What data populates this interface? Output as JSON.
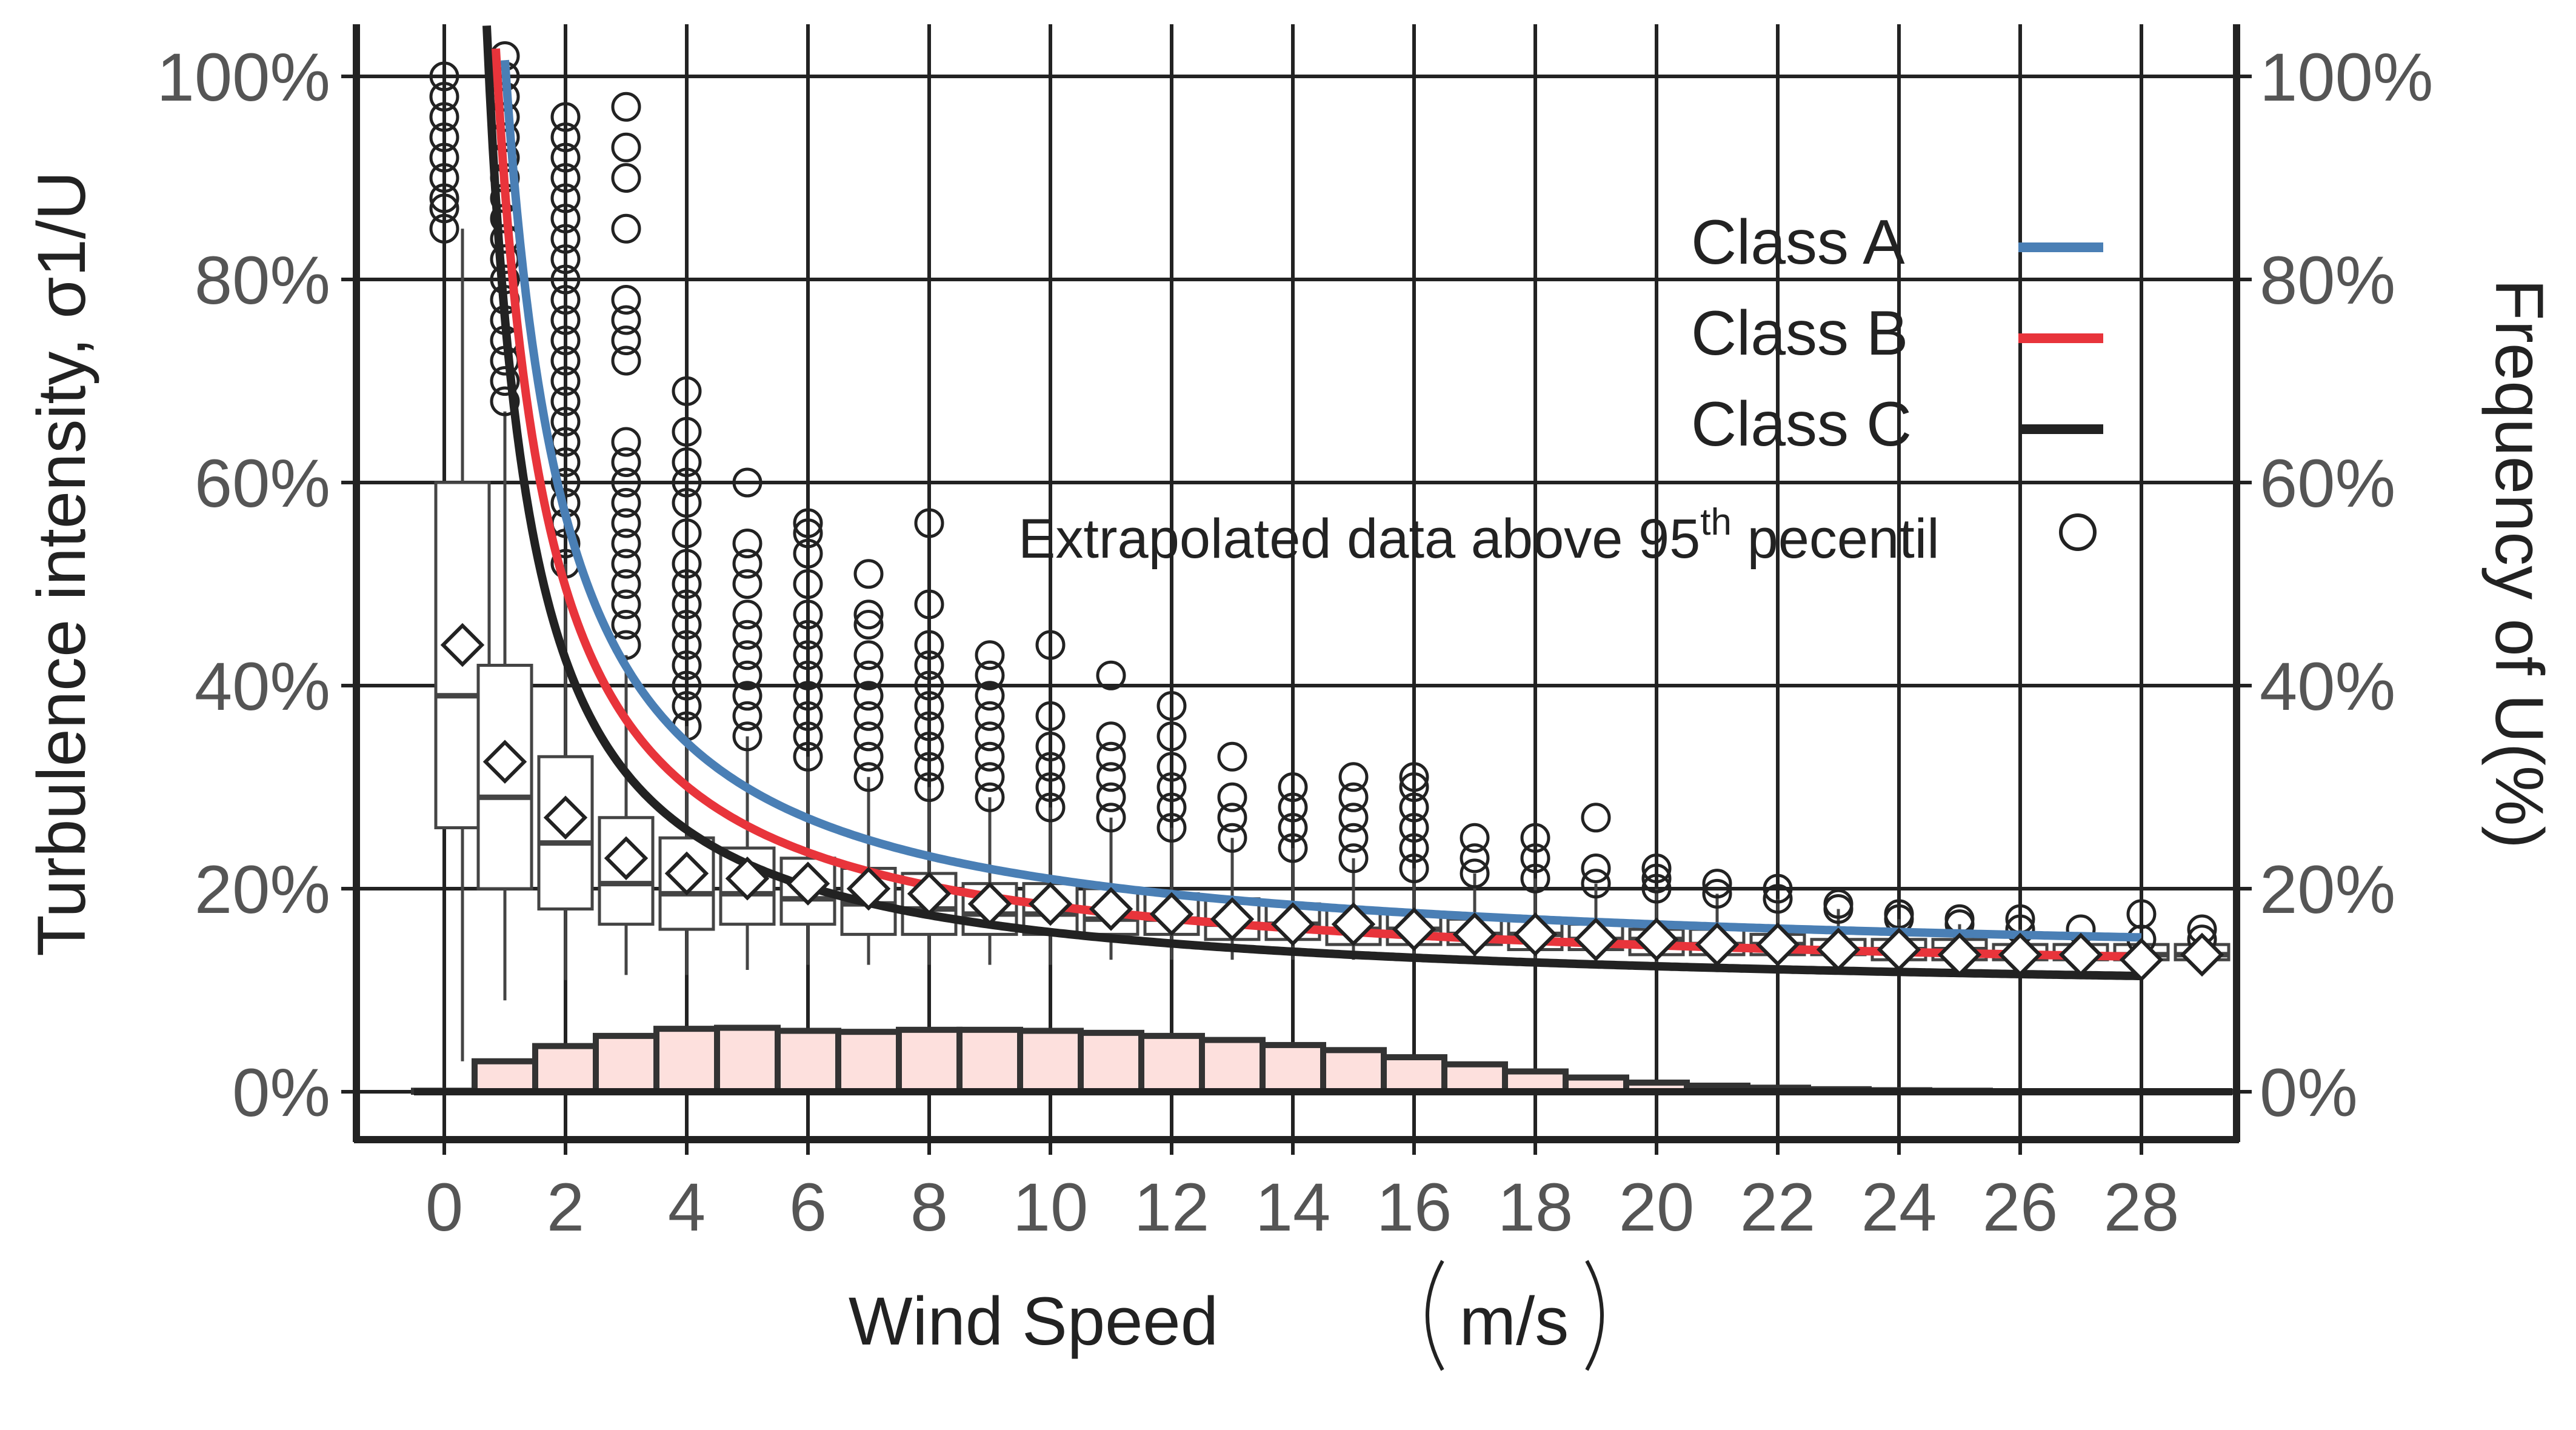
{
  "chart_data": {
    "type": "box",
    "title": "",
    "xlabel": "Wind Speed",
    "xlabel_unit": "m/s",
    "ylabel": "Turbulence intensity, σ1/U",
    "ylabel_right": "Frequency of U(%)",
    "x_ticks": [
      "0",
      "2",
      "4",
      "6",
      "8",
      "10",
      "12",
      "14",
      "16",
      "18",
      "20",
      "22",
      "24",
      "26",
      "28"
    ],
    "y_ticks": [
      "0%",
      "20%",
      "40%",
      "60%",
      "80%",
      "100%"
    ],
    "y_ticks_right": [
      "0%",
      "20%",
      "40%",
      "60%",
      "80%",
      "100%"
    ],
    "xlim": [
      -1.3,
      29.9
    ],
    "ylim": [
      -5,
      105
    ],
    "legend": {
      "position": "top-right",
      "entries": [
        {
          "label": "Class A",
          "color": "#4a7fb5"
        },
        {
          "label": "Class B",
          "color": "#e8343b"
        },
        {
          "label": "Class C",
          "color": "#222222"
        }
      ]
    },
    "annotation": {
      "text": "Extrapolated data above 95",
      "superscript": "th",
      "suffix": " pecentil"
    },
    "iec_curves": [
      {
        "name": "Class A",
        "color": "#4a7fb5",
        "Iref": 0.16
      },
      {
        "name": "Class B",
        "color": "#e8343b",
        "Iref": 0.14
      },
      {
        "name": "Class C",
        "color": "#222222",
        "Iref": 0.12
      }
    ],
    "boxes": [
      {
        "x": 0.3,
        "q1": 26,
        "median": 39,
        "q3": 60,
        "lo": 3,
        "hi": 85,
        "mean": 44
      },
      {
        "x": 1,
        "q1": 20,
        "median": 29,
        "q3": 42,
        "lo": 9,
        "hi": 67,
        "mean": 32.5
      },
      {
        "x": 2,
        "q1": 18,
        "median": 24.5,
        "q3": 33,
        "lo": 11,
        "hi": 52,
        "mean": 27
      },
      {
        "x": 3,
        "q1": 16.5,
        "median": 20.5,
        "q3": 27,
        "lo": 11.5,
        "hi": 43,
        "mean": 23
      },
      {
        "x": 4,
        "q1": 16,
        "median": 19.5,
        "q3": 25,
        "lo": 11.5,
        "hi": 36,
        "mean": 21.5
      },
      {
        "x": 5,
        "q1": 16.5,
        "median": 19.5,
        "q3": 24,
        "lo": 12,
        "hi": 35,
        "mean": 21
      },
      {
        "x": 6,
        "q1": 16.5,
        "median": 19,
        "q3": 23,
        "lo": 12.5,
        "hi": 33,
        "mean": 20.5
      },
      {
        "x": 7,
        "q1": 15.5,
        "median": 18.5,
        "q3": 22,
        "lo": 12.5,
        "hi": 31,
        "mean": 20
      },
      {
        "x": 8,
        "q1": 15.5,
        "median": 18,
        "q3": 21.5,
        "lo": 12.5,
        "hi": 30,
        "mean": 19.5
      },
      {
        "x": 9,
        "q1": 15.5,
        "median": 17.5,
        "q3": 20.5,
        "lo": 12.5,
        "hi": 29,
        "mean": 18.5
      },
      {
        "x": 10,
        "q1": 15.5,
        "median": 17.5,
        "q3": 20.5,
        "lo": 12.5,
        "hi": 28,
        "mean": 18.5
      },
      {
        "x": 11,
        "q1": 15.5,
        "median": 17,
        "q3": 20,
        "lo": 13,
        "hi": 27,
        "mean": 18
      },
      {
        "x": 12,
        "q1": 15.5,
        "median": 17,
        "q3": 19.5,
        "lo": 13,
        "hi": 26,
        "mean": 17.5
      },
      {
        "x": 13,
        "q1": 15,
        "median": 16.5,
        "q3": 19,
        "lo": 13,
        "hi": 25,
        "mean": 17
      },
      {
        "x": 14,
        "q1": 15,
        "median": 16.5,
        "q3": 18.5,
        "lo": 13,
        "hi": 24,
        "mean": 16.5
      },
      {
        "x": 15,
        "q1": 14.5,
        "median": 16,
        "q3": 18,
        "lo": 13,
        "hi": 23,
        "mean": 16.5
      },
      {
        "x": 16,
        "q1": 14.5,
        "median": 16,
        "q3": 17.5,
        "lo": 13,
        "hi": 22,
        "mean": 16
      },
      {
        "x": 17,
        "q1": 14.5,
        "median": 15.5,
        "q3": 17,
        "lo": 13,
        "hi": 21.5,
        "mean": 15.5
      },
      {
        "x": 18,
        "q1": 14,
        "median": 15.5,
        "q3": 17,
        "lo": 13,
        "hi": 21,
        "mean": 15.5
      },
      {
        "x": 19,
        "q1": 14,
        "median": 15,
        "q3": 16.5,
        "lo": 12.5,
        "hi": 20.5,
        "mean": 15
      },
      {
        "x": 20,
        "q1": 13.5,
        "median": 15,
        "q3": 16,
        "lo": 12.5,
        "hi": 20,
        "mean": 15
      },
      {
        "x": 21,
        "q1": 13.5,
        "median": 14.5,
        "q3": 16,
        "lo": 12.5,
        "hi": 19.5,
        "mean": 14.5
      },
      {
        "x": 22,
        "q1": 13.5,
        "median": 14.5,
        "q3": 15.5,
        "lo": 12.5,
        "hi": 19,
        "mean": 14.5
      },
      {
        "x": 23,
        "q1": 13.5,
        "median": 14,
        "q3": 15,
        "lo": 12.5,
        "hi": 18,
        "mean": 14
      },
      {
        "x": 24,
        "q1": 13,
        "median": 14,
        "q3": 15,
        "lo": 12.5,
        "hi": 17,
        "mean": 14
      },
      {
        "x": 25,
        "q1": 13,
        "median": 14,
        "q3": 15,
        "lo": 12.5,
        "hi": 16.5,
        "mean": 13.5
      },
      {
        "x": 26,
        "q1": 13,
        "median": 13.5,
        "q3": 14.5,
        "lo": 12.5,
        "hi": 16,
        "mean": 13.5
      },
      {
        "x": 27,
        "q1": 13,
        "median": 13.5,
        "q3": 14.5,
        "lo": 12.5,
        "hi": 15.5,
        "mean": 13.5
      },
      {
        "x": 28,
        "q1": 13,
        "median": 13.5,
        "q3": 14.5,
        "lo": 12.5,
        "hi": 15,
        "mean": 13
      },
      {
        "x": 29,
        "q1": 13,
        "median": 13.5,
        "q3": 14.5,
        "lo": 12.5,
        "hi": 15,
        "mean": 13.5
      }
    ],
    "outliers": [
      {
        "x": 0,
        "y": [
          85,
          87,
          88,
          90,
          92,
          94,
          96,
          98,
          100
        ]
      },
      {
        "x": 1,
        "y": [
          68,
          70,
          72,
          74,
          76,
          78,
          80,
          82,
          84,
          86,
          88,
          90,
          92,
          94,
          96,
          98,
          100,
          102
        ]
      },
      {
        "x": 2,
        "y": [
          52,
          54,
          56,
          58,
          60,
          62,
          64,
          66,
          68,
          70,
          72,
          74,
          76,
          78,
          80,
          82,
          84,
          86,
          88,
          90,
          92,
          94,
          96
        ]
      },
      {
        "x": 3,
        "y": [
          44,
          46,
          48,
          50,
          52,
          54,
          56,
          58,
          60,
          62,
          64,
          72,
          74,
          76,
          78,
          85,
          90,
          93,
          97
        ]
      },
      {
        "x": 4,
        "y": [
          36,
          38,
          40,
          42,
          44,
          46,
          48,
          50,
          52,
          55,
          58,
          60,
          62,
          65,
          69
        ]
      },
      {
        "x": 5,
        "y": [
          35,
          37,
          39,
          41,
          43,
          45,
          47,
          50,
          52,
          54,
          60
        ]
      },
      {
        "x": 6,
        "y": [
          33,
          35,
          37,
          39,
          41,
          43,
          45,
          47,
          50,
          53,
          55,
          56
        ]
      },
      {
        "x": 7,
        "y": [
          31,
          33,
          35,
          37,
          39,
          41,
          43,
          46,
          47,
          51
        ]
      },
      {
        "x": 8,
        "y": [
          30,
          32,
          34,
          36,
          38,
          40,
          42,
          44,
          48,
          56
        ]
      },
      {
        "x": 9,
        "y": [
          29,
          31,
          33,
          35,
          37,
          39,
          41,
          43
        ]
      },
      {
        "x": 10,
        "y": [
          28,
          30,
          32,
          34,
          37,
          44
        ]
      },
      {
        "x": 11,
        "y": [
          27,
          29,
          31,
          33,
          35,
          41
        ]
      },
      {
        "x": 12,
        "y": [
          26,
          28,
          30,
          32,
          35,
          38
        ]
      },
      {
        "x": 13,
        "y": [
          25,
          27,
          29,
          33
        ]
      },
      {
        "x": 14,
        "y": [
          24,
          26,
          28,
          30
        ]
      },
      {
        "x": 15,
        "y": [
          23,
          25,
          27,
          29,
          31
        ]
      },
      {
        "x": 16,
        "y": [
          22,
          24,
          26,
          28,
          30,
          31
        ]
      },
      {
        "x": 17,
        "y": [
          21.5,
          23,
          25
        ]
      },
      {
        "x": 18,
        "y": [
          21,
          23,
          25
        ]
      },
      {
        "x": 19,
        "y": [
          20.5,
          22,
          27
        ]
      },
      {
        "x": 20,
        "y": [
          20,
          21,
          22
        ]
      },
      {
        "x": 21,
        "y": [
          19.5,
          20.5
        ]
      },
      {
        "x": 22,
        "y": [
          19,
          20
        ]
      },
      {
        "x": 23,
        "y": [
          18,
          18.5
        ]
      },
      {
        "x": 24,
        "y": [
          17,
          17.5
        ]
      },
      {
        "x": 25,
        "y": [
          16.5,
          17
        ]
      },
      {
        "x": 26,
        "y": [
          16,
          17
        ]
      },
      {
        "x": 27,
        "y": [
          16
        ]
      },
      {
        "x": 28,
        "y": [
          15,
          17.5
        ]
      },
      {
        "x": 29,
        "y": [
          15,
          16
        ]
      }
    ],
    "frequency_histogram": {
      "color": "#fde0dd",
      "x": [
        0,
        1,
        2,
        3,
        4,
        5,
        6,
        7,
        8,
        9,
        10,
        11,
        12,
        13,
        14,
        15,
        16,
        17,
        18,
        19,
        20,
        21,
        22,
        23,
        24,
        25,
        26,
        27,
        28,
        29
      ],
      "values": [
        0.1,
        3,
        4.5,
        5.5,
        6.2,
        6.3,
        6,
        5.9,
        6.1,
        6.1,
        6,
        5.8,
        5.5,
        5.1,
        4.6,
        4.1,
        3.4,
        2.7,
        2.0,
        1.4,
        0.9,
        0.6,
        0.4,
        0.25,
        0.15,
        0.1,
        0.05,
        0.03,
        0.02,
        0.01
      ]
    }
  }
}
